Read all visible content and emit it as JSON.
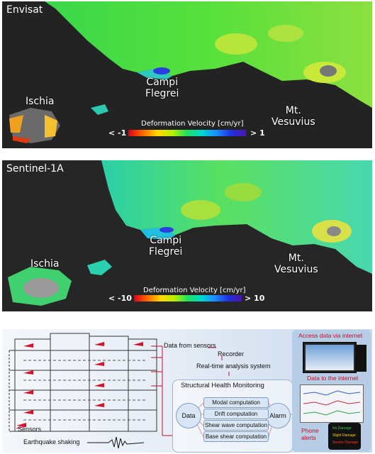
{
  "panel_envisat": {
    "satellite": "Envisat",
    "places": {
      "campi": "Campi\nFlegrei",
      "ischia": "Ischia",
      "vesuvius": "Mt.\nVesuvius"
    },
    "legend": {
      "title": "Deformation Velocity [cm/yr]",
      "min": "< -1",
      "max": "> 1"
    }
  },
  "panel_sentinel": {
    "satellite": "Sentinel-1A",
    "places": {
      "campi": "Campi\nFlegrei",
      "ischia": "Ischia",
      "vesuvius": "Mt.\nVesuvius"
    },
    "legend": {
      "title": "Deformation Velocity [cm/yr]",
      "min": "< -10",
      "max": "> 10"
    }
  },
  "diagram": {
    "data_from_sensors": "Data from sensors",
    "recorder": "Recorder",
    "realtime": "Real-time analysis system",
    "shm_title": "Structural Health Monitoring",
    "data": "Data",
    "alarm": "Alarm",
    "computations": [
      "Modal computation",
      "Drift computation",
      "Shear wave computation",
      "Base shear computation"
    ],
    "sensors": "Sensors",
    "earthquake": "Earthquake shaking",
    "access": "Access data via internet",
    "to_internet": "Data to the internet",
    "phone_alerts": "Phone\nalerts",
    "phone_lines": [
      "No Damage",
      "Slight Damage",
      "Severe Damage"
    ]
  },
  "colors": {
    "red_accent": "#c0102a",
    "sea": "#1f1f1f"
  }
}
